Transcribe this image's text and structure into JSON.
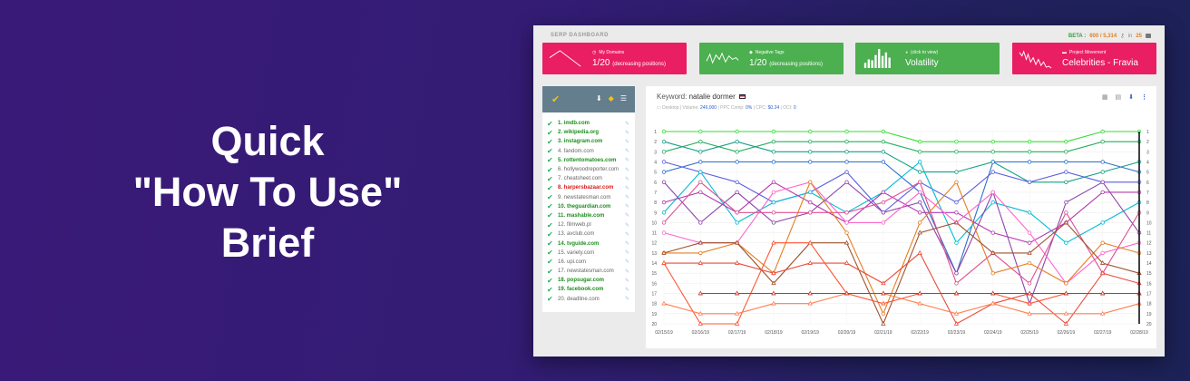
{
  "headline": {
    "line1": "Quick",
    "line2": "\"How To Use\"",
    "line3": "Brief"
  },
  "app": {
    "brand": "SERP DASHBOARD",
    "beta_label": "BETA :",
    "credits": "600 / 5,314",
    "in_label": "in",
    "in_count": "25"
  },
  "cards": [
    {
      "title": "My Domains",
      "value": "1/20",
      "note": "(decreasing positions)",
      "color": "#e91e63",
      "icon": "clock-icon",
      "spark": "trend-down"
    },
    {
      "title": "Negative Tags",
      "value": "1/20",
      "note": "(decreasing positions)",
      "color": "#4caf50",
      "icon": "tag-icon",
      "spark": "zigzag"
    },
    {
      "title": "(click to view)",
      "value": "Volatility",
      "note": "",
      "color": "#4caf50",
      "icon": "pie-icon",
      "spark": "bars"
    },
    {
      "title": "Project Movement",
      "value": "Celebrities - Fravia",
      "note": "",
      "color": "#e91e63",
      "icon": "folder-icon",
      "spark": "volatile-line"
    }
  ],
  "domains": [
    {
      "label": "1. imdb.com",
      "style": "bold"
    },
    {
      "label": "2. wikipedia.org",
      "style": "bold"
    },
    {
      "label": "3. instagram.com",
      "style": "bold"
    },
    {
      "label": "4. fandom.com",
      "style": "normal"
    },
    {
      "label": "5. rottentomatoes.com",
      "style": "bold"
    },
    {
      "label": "6. hollywoodreporter.com",
      "style": "normal"
    },
    {
      "label": "7. cheatsheet.com",
      "style": "normal"
    },
    {
      "label": "8. harpersbazaar.com",
      "style": "red"
    },
    {
      "label": "9. newstatesman.com",
      "style": "normal"
    },
    {
      "label": "10. theguardian.com",
      "style": "bold"
    },
    {
      "label": "11. mashable.com",
      "style": "bold"
    },
    {
      "label": "12. filmweb.pl",
      "style": "normal"
    },
    {
      "label": "13. avclub.com",
      "style": "normal"
    },
    {
      "label": "14. tvguide.com",
      "style": "bold"
    },
    {
      "label": "15. variety.com",
      "style": "normal"
    },
    {
      "label": "16. upi.com",
      "style": "normal"
    },
    {
      "label": "17. newstatesman.com",
      "style": "normal"
    },
    {
      "label": "18. popsugar.com",
      "style": "bold"
    },
    {
      "label": "19. facebook.com",
      "style": "bold"
    },
    {
      "label": "20. deadline.com",
      "style": "normal"
    }
  ],
  "keyword": {
    "label": "Keyword:",
    "value": "natalie dormer",
    "meta_device": "Desktop",
    "meta_volume_label": "| Volume:",
    "meta_volume": "246,000",
    "meta_ppc_label": "| PPC Comp:",
    "meta_ppc": "0%",
    "meta_cpc_label": "| CPC:",
    "meta_cpc": "$0.24",
    "meta_oci_label": "| OCI:",
    "meta_oci": "0"
  },
  "chart_data": {
    "type": "line",
    "x": [
      "02/15/19",
      "02/16/19",
      "02/17/19",
      "02/18/19",
      "02/19/19",
      "02/20/19",
      "02/21/19",
      "02/22/19",
      "02/23/19",
      "02/24/19",
      "02/25/19",
      "02/26/19",
      "02/27/19",
      "02/28/19"
    ],
    "y_range": [
      1,
      20
    ],
    "y_reversed": true,
    "y_ticks": [
      1,
      2,
      3,
      4,
      5,
      6,
      7,
      8,
      9,
      10,
      11,
      12,
      13,
      14,
      15,
      16,
      17,
      18,
      19,
      20
    ],
    "series": [
      {
        "color": "#33dd33",
        "marker": "circle",
        "values": [
          1,
          1,
          1,
          1,
          1,
          1,
          1,
          2,
          2,
          2,
          2,
          2,
          1,
          1
        ]
      },
      {
        "color": "#27ae60",
        "marker": "circle",
        "values": [
          3,
          2,
          3,
          2,
          2,
          2,
          2,
          3,
          3,
          3,
          3,
          3,
          2,
          2
        ]
      },
      {
        "color": "#16a085",
        "marker": "circle",
        "values": [
          2,
          3,
          2,
          3,
          3,
          3,
          3,
          5,
          5,
          4,
          6,
          6,
          5,
          4
        ]
      },
      {
        "color": "#2c70c9",
        "marker": "circle",
        "values": [
          5,
          4,
          4,
          4,
          4,
          4,
          4,
          7,
          15,
          4,
          4,
          4,
          4,
          5
        ]
      },
      {
        "color": "#5a5fe0",
        "marker": "circle",
        "values": [
          4,
          5,
          6,
          8,
          7,
          5,
          9,
          6,
          8,
          5,
          6,
          5,
          6,
          6
        ]
      },
      {
        "color": "#00bcd4",
        "marker": "circle",
        "values": [
          9,
          5,
          10,
          8,
          7,
          9,
          7,
          4,
          12,
          8,
          9,
          12,
          10,
          8
        ]
      },
      {
        "color": "#8e44ad",
        "marker": "circle",
        "values": [
          6,
          10,
          7,
          10,
          9,
          6,
          9,
          8,
          15,
          7,
          18,
          8,
          6,
          11
        ]
      },
      {
        "color": "#b03ab0",
        "marker": "circle",
        "values": [
          8,
          7,
          9,
          6,
          8,
          10,
          7,
          9,
          9,
          11,
          12,
          10,
          7,
          7
        ]
      },
      {
        "color": "#ff66cc",
        "marker": "circle",
        "values": [
          11,
          12,
          12,
          7,
          6,
          10,
          10,
          7,
          10,
          7,
          11,
          16,
          13,
          12
        ]
      },
      {
        "color": "#e05090",
        "marker": "circle",
        "values": [
          10,
          6,
          9,
          9,
          9,
          9,
          8,
          6,
          16,
          13,
          16,
          9,
          15,
          9
        ]
      },
      {
        "color": "#e67e22",
        "marker": "circle",
        "values": [
          13,
          13,
          12,
          15,
          6,
          11,
          19,
          10,
          6,
          15,
          14,
          16,
          12,
          13
        ]
      },
      {
        "color": "#a0522d",
        "marker": "triangle",
        "values": [
          13,
          12,
          12,
          16,
          12,
          12,
          20,
          11,
          10,
          13,
          13,
          10,
          14,
          15
        ]
      },
      {
        "color": "#e74c3c",
        "marker": "triangle",
        "values": [
          14,
          14,
          14,
          15,
          14,
          14,
          16,
          13,
          20,
          18,
          17,
          20,
          15,
          16
        ]
      },
      {
        "color": "#ff5533",
        "marker": "triangle",
        "values": [
          14,
          20,
          20,
          12,
          12,
          17,
          18,
          17,
          17,
          17,
          18,
          17,
          17,
          17
        ]
      },
      {
        "color": "#ff7f50",
        "marker": "triangle",
        "values": [
          18,
          19,
          19,
          18,
          18,
          17,
          17,
          18,
          19,
          18,
          19,
          19,
          19,
          18
        ]
      },
      {
        "color": "#c0392b",
        "marker": "triangle",
        "values": [
          null,
          17,
          17,
          17,
          17,
          17,
          17,
          17,
          17,
          17,
          17,
          17,
          17,
          17
        ]
      },
      {
        "color": "#d35400",
        "marker": "circle",
        "values": [
          null,
          null,
          null,
          null,
          null,
          null,
          null,
          null,
          null,
          null,
          null,
          null,
          null,
          null
        ]
      }
    ]
  }
}
